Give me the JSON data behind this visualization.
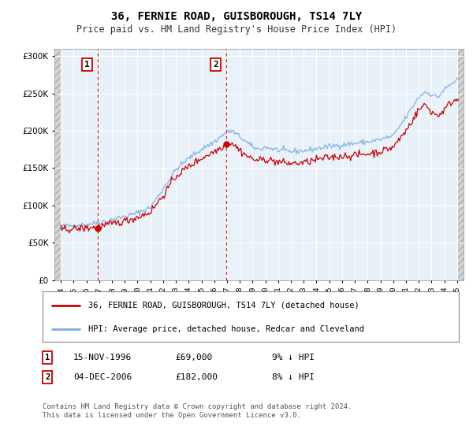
{
  "title": "36, FERNIE ROAD, GUISBOROUGH, TS14 7LY",
  "subtitle": "Price paid vs. HM Land Registry's House Price Index (HPI)",
  "legend_line1": "36, FERNIE ROAD, GUISBOROUGH, TS14 7LY (detached house)",
  "legend_line2": "HPI: Average price, detached house, Redcar and Cleveland",
  "purchase1_date": "15-NOV-1996",
  "purchase1_price": 69000,
  "purchase1_note": "9% ↓ HPI",
  "purchase2_date": "04-DEC-2006",
  "purchase2_price": 182000,
  "purchase2_note": "8% ↓ HPI",
  "footer": "Contains HM Land Registry data © Crown copyright and database right 2024.\nThis data is licensed under the Open Government Licence v3.0.",
  "price_color": "#cc0000",
  "hpi_color": "#7aaddb",
  "bg_color": "#e8f0f8",
  "hatch_facecolor": "#d8d8d8",
  "grid_color": "#ffffff",
  "ylim": [
    0,
    310000
  ],
  "yticks": [
    0,
    50000,
    100000,
    150000,
    200000,
    250000,
    300000
  ],
  "xlim_start": 1993.5,
  "xlim_end": 2025.5,
  "purchase1_year": 1996.88,
  "purchase2_year": 2006.92,
  "hpi_start_year": 1994.0,
  "hpi_end_year": 2025.0
}
